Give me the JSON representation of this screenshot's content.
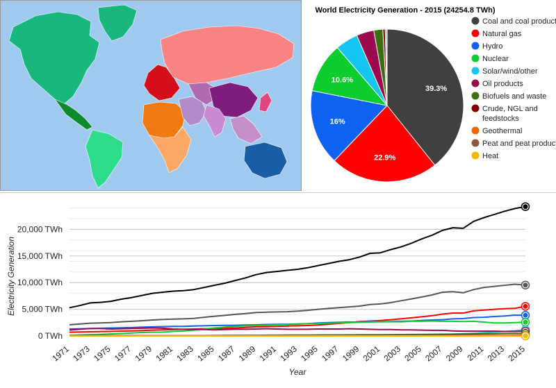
{
  "map": {
    "ocean_color": "#9fc9ef",
    "regions": [
      {
        "name": "north-america",
        "color": "#19b77e"
      },
      {
        "name": "central-america",
        "color": "#0e8a2e"
      },
      {
        "name": "south-america",
        "color": "#2edc8c"
      },
      {
        "name": "greenland",
        "color": "#19b77e"
      },
      {
        "name": "europe-west",
        "color": "#d40f1b"
      },
      {
        "name": "russia",
        "color": "#f98484"
      },
      {
        "name": "africa-north",
        "color": "#f27a12"
      },
      {
        "name": "africa-central",
        "color": "#fba766"
      },
      {
        "name": "middle-east",
        "color": "#b28cc8"
      },
      {
        "name": "central-asia",
        "color": "#b06bb0"
      },
      {
        "name": "china",
        "color": "#7f1d7f"
      },
      {
        "name": "india",
        "color": "#c88ad0"
      },
      {
        "name": "southeast-asia",
        "color": "#c48fcb"
      },
      {
        "name": "japan",
        "color": "#e0457b"
      },
      {
        "name": "australia",
        "color": "#1a5da7"
      }
    ]
  },
  "chart_data": [
    {
      "type": "pie",
      "title": "World Electricity Generation - 2015 (24254.8 TWh)",
      "series": [
        {
          "name": "Coal and coal products",
          "value": 39.3,
          "color": "#404040",
          "label": "39.3%"
        },
        {
          "name": "Natural gas",
          "value": 22.9,
          "color": "#ff0000",
          "label": "22.9%"
        },
        {
          "name": "Hydro",
          "value": 16.0,
          "color": "#0d63f0",
          "label": "16%"
        },
        {
          "name": "Nuclear",
          "value": 10.6,
          "color": "#0ccd2d",
          "label": "10.6%"
        },
        {
          "name": "Solar/wind/other",
          "value": 4.8,
          "color": "#12c6ef",
          "label": ""
        },
        {
          "name": "Oil products",
          "value": 3.7,
          "color": "#9c0a4e",
          "label": ""
        },
        {
          "name": "Biofuels and waste",
          "value": 1.9,
          "color": "#3a6e10",
          "label": ""
        },
        {
          "name": "Crude, NGL and feedstocks",
          "value": 0.5,
          "color": "#8a0000",
          "label": ""
        },
        {
          "name": "Geothermal",
          "value": 0.3,
          "color": "#ee6a00",
          "label": ""
        },
        {
          "name": "Peat and peat products",
          "value": 0.05,
          "color": "#8b5a3c",
          "label": ""
        },
        {
          "name": "Heat",
          "value": 0.05,
          "color": "#f5b800",
          "label": ""
        }
      ],
      "legend_lines": [
        [
          "Coal and coal products"
        ],
        [
          "Natural gas"
        ],
        [
          "Hydro"
        ],
        [
          "Nuclear"
        ],
        [
          "Solar/wind/other"
        ],
        [
          "Oil products"
        ],
        [
          "Biofuels and waste"
        ],
        [
          "Crude, NGL and",
          "feedstocks"
        ],
        [
          "Geothermal"
        ],
        [
          "Peat and peat products"
        ],
        [
          "Heat"
        ]
      ],
      "legend_placement": "right"
    },
    {
      "type": "line",
      "title": "",
      "xlabel": "Year",
      "ylabel": "Electricity Generation",
      "xlim": [
        1971,
        2015
      ],
      "ylim": [
        0,
        25000
      ],
      "yticks": [
        0,
        5000,
        10000,
        15000,
        20000
      ],
      "ytick_labels": [
        "0 TWh",
        "5,000 TWh",
        "10,000 TWh",
        "15,000 TWh",
        "20,000 TWh"
      ],
      "xtick_labels": [
        "1971",
        "1973",
        "1975",
        "1977",
        "1979",
        "1981",
        "1983",
        "1985",
        "1987",
        "1989",
        "1991",
        "1993",
        "1995",
        "1997",
        "1999",
        "2001",
        "2003",
        "2005",
        "2007",
        "2009",
        "2011",
        "2013",
        "2015"
      ],
      "grid": true,
      "x": [
        1971,
        1972,
        1973,
        1974,
        1975,
        1976,
        1977,
        1978,
        1979,
        1980,
        1981,
        1982,
        1983,
        1984,
        1985,
        1986,
        1987,
        1988,
        1989,
        1990,
        1991,
        1992,
        1993,
        1994,
        1995,
        1996,
        1997,
        1998,
        1999,
        2000,
        2001,
        2002,
        2003,
        2004,
        2005,
        2006,
        2007,
        2008,
        2009,
        2010,
        2011,
        2012,
        2013,
        2014,
        2015
      ],
      "series": [
        {
          "color": "#000000",
          "values": [
            5300,
            5700,
            6200,
            6300,
            6500,
            6900,
            7200,
            7600,
            8000,
            8200,
            8400,
            8500,
            8700,
            9100,
            9500,
            9900,
            10400,
            10900,
            11500,
            11900,
            12100,
            12300,
            12500,
            12800,
            13200,
            13600,
            14000,
            14300,
            14800,
            15500,
            15600,
            16200,
            16700,
            17400,
            18200,
            18900,
            19800,
            20300,
            20200,
            21500,
            22200,
            22800,
            23400,
            23900,
            24255
          ]
        },
        {
          "color": "#555555",
          "values": [
            2100,
            2250,
            2400,
            2450,
            2500,
            2650,
            2750,
            2850,
            3000,
            3100,
            3150,
            3200,
            3300,
            3500,
            3700,
            3850,
            4050,
            4200,
            4400,
            4450,
            4500,
            4550,
            4650,
            4800,
            5000,
            5150,
            5300,
            5450,
            5600,
            5900,
            6000,
            6250,
            6600,
            6950,
            7300,
            7700,
            8200,
            8300,
            8100,
            8700,
            9100,
            9300,
            9500,
            9700,
            9540
          ]
        },
        {
          "color": "#ff0000",
          "values": [
            700,
            750,
            780,
            820,
            850,
            900,
            950,
            1000,
            1100,
            1150,
            1200,
            1250,
            1300,
            1350,
            1400,
            1450,
            1500,
            1600,
            1700,
            1750,
            1800,
            1850,
            1900,
            1950,
            2050,
            2200,
            2350,
            2500,
            2700,
            2800,
            2900,
            3050,
            3200,
            3400,
            3600,
            3800,
            4100,
            4300,
            4300,
            4700,
            4850,
            5000,
            5100,
            5200,
            5554
          ]
        },
        {
          "color": "#0d63f0",
          "values": [
            1300,
            1350,
            1380,
            1450,
            1500,
            1530,
            1570,
            1650,
            1700,
            1750,
            1780,
            1800,
            1850,
            1900,
            1950,
            1980,
            2000,
            2050,
            2080,
            2150,
            2180,
            2200,
            2250,
            2300,
            2450,
            2500,
            2550,
            2600,
            2620,
            2700,
            2650,
            2700,
            2750,
            2800,
            2900,
            3000,
            3050,
            3200,
            3250,
            3450,
            3500,
            3650,
            3750,
            3900,
            3881
          ]
        },
        {
          "color": "#0ccd2d",
          "values": [
            110,
            180,
            250,
            300,
            380,
            450,
            550,
            650,
            700,
            710,
            860,
            920,
            1100,
            1300,
            1500,
            1650,
            1800,
            1900,
            1950,
            2000,
            2100,
            2150,
            2200,
            2300,
            2350,
            2400,
            2450,
            2500,
            2550,
            2600,
            2650,
            2650,
            2650,
            2750,
            2750,
            2800,
            2750,
            2750,
            2700,
            2750,
            2600,
            2450,
            2450,
            2500,
            2571
          ]
        },
        {
          "color": "#12c6ef",
          "values": [
            40,
            40,
            40,
            40,
            40,
            40,
            45,
            45,
            45,
            50,
            50,
            55,
            60,
            60,
            70,
            80,
            90,
            100,
            110,
            120,
            125,
            130,
            135,
            140,
            150,
            155,
            160,
            170,
            175,
            180,
            190,
            200,
            210,
            230,
            250,
            280,
            320,
            370,
            420,
            500,
            600,
            720,
            850,
            980,
            1164
          ]
        },
        {
          "color": "#9c0a4e",
          "values": [
            1100,
            1250,
            1400,
            1400,
            1300,
            1350,
            1400,
            1450,
            1500,
            1450,
            1300,
            1250,
            1200,
            1200,
            1150,
            1200,
            1250,
            1250,
            1300,
            1350,
            1300,
            1250,
            1250,
            1250,
            1300,
            1300,
            1300,
            1350,
            1300,
            1250,
            1200,
            1200,
            1150,
            1150,
            1100,
            1050,
            1050,
            950,
            900,
            900,
            900,
            900,
            850,
            850,
            897
          ]
        },
        {
          "color": "#3a6e10",
          "values": [
            20,
            20,
            25,
            25,
            30,
            30,
            35,
            35,
            40,
            45,
            50,
            55,
            60,
            70,
            80,
            90,
            100,
            110,
            120,
            130,
            140,
            150,
            160,
            170,
            180,
            190,
            200,
            210,
            220,
            230,
            240,
            250,
            260,
            270,
            280,
            300,
            320,
            330,
            350,
            380,
            400,
            430,
            450,
            470,
            461
          ]
        },
        {
          "color": "#8a0000",
          "values": [
            50,
            50,
            55,
            55,
            60,
            60,
            60,
            60,
            60,
            60,
            60,
            60,
            60,
            60,
            60,
            60,
            60,
            60,
            60,
            60,
            60,
            60,
            60,
            60,
            60,
            60,
            60,
            60,
            60,
            60,
            60,
            70,
            70,
            70,
            70,
            80,
            80,
            90,
            90,
            100,
            100,
            110,
            110,
            115,
            121
          ]
        },
        {
          "color": "#ee6a00",
          "values": [
            10,
            10,
            12,
            12,
            14,
            15,
            18,
            20,
            22,
            25,
            28,
            30,
            33,
            35,
            38,
            40,
            42,
            44,
            46,
            48,
            50,
            50,
            52,
            54,
            56,
            58,
            60,
            60,
            62,
            64,
            66,
            68,
            68,
            70,
            70,
            72,
            74,
            76,
            78,
            80,
            80,
            80,
            80,
            80,
            73
          ]
        },
        {
          "color": "#8b5a3c",
          "values": [
            40,
            40,
            40,
            40,
            40,
            40,
            40,
            40,
            40,
            40,
            40,
            40,
            40,
            40,
            40,
            40,
            40,
            40,
            40,
            40,
            40,
            40,
            40,
            40,
            40,
            40,
            40,
            40,
            40,
            40,
            40,
            40,
            40,
            40,
            40,
            40,
            40,
            40,
            40,
            40,
            40,
            40,
            40,
            40,
            12
          ]
        },
        {
          "color": "#f5b800",
          "values": [
            0,
            0,
            0,
            0,
            0,
            0,
            0,
            0,
            0,
            0,
            0,
            0,
            0,
            0,
            0,
            0,
            0,
            0,
            0,
            0,
            0,
            0,
            0,
            0,
            0,
            0,
            0,
            0,
            0,
            0,
            0,
            0,
            0,
            0,
            0,
            0,
            0,
            0,
            0,
            0,
            0,
            0,
            0,
            0,
            12
          ]
        }
      ]
    }
  ]
}
